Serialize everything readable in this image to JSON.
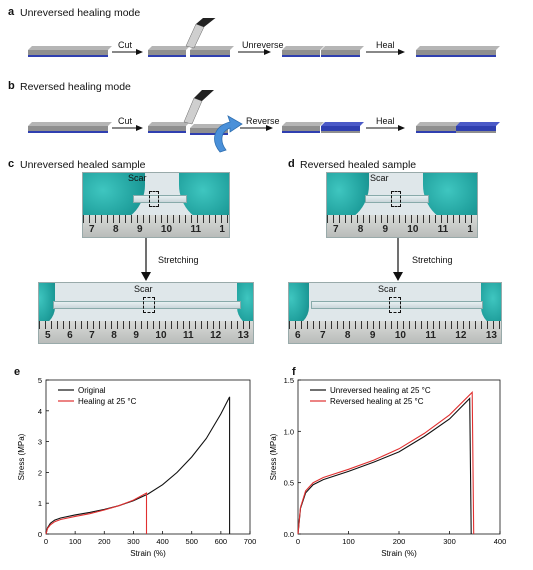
{
  "panel_a": {
    "letter": "a",
    "title": "Unreversed healing mode",
    "step1": "Cut",
    "step2": "Unreverse",
    "step3": "Heal"
  },
  "panel_b": {
    "letter": "b",
    "title": "Reversed healing mode",
    "step1": "Cut",
    "step2": "Reverse",
    "step3": "Heal"
  },
  "panel_c": {
    "letter": "c",
    "title": "Unreversed healed sample",
    "scar_top": "Scar",
    "stretch": "Stretching",
    "scar_bottom": "Scar",
    "ruler_top": [
      "7",
      "8",
      "9",
      "10",
      "11",
      "1"
    ],
    "ruler_bottom": [
      "5",
      "6",
      "7",
      "8",
      "9",
      "10",
      "11",
      "12",
      "13"
    ]
  },
  "panel_d": {
    "letter": "d",
    "title": "Reversed healed sample",
    "scar_top": "Scar",
    "stretch": "Stretching",
    "scar_bottom": "Scar",
    "ruler_top": [
      "7",
      "8",
      "9",
      "10",
      "11",
      "1"
    ],
    "ruler_bottom": [
      "6",
      "7",
      "8",
      "9",
      "10",
      "11",
      "12",
      "13"
    ]
  },
  "colors": {
    "black": "#111111",
    "red": "#e03030",
    "gray_strip": "#8f8f8f",
    "blue_strip": "#2f3fb0"
  },
  "chart_data": [
    {
      "panel": "e",
      "type": "line",
      "xlabel": "Strain (%)",
      "ylabel": "Stress (MPa)",
      "xlim": [
        0,
        700
      ],
      "ylim": [
        0,
        5
      ],
      "xticks": [
        0,
        100,
        200,
        300,
        400,
        500,
        600,
        700
      ],
      "yticks": [
        0,
        1,
        2,
        3,
        4,
        5
      ],
      "legend": "top-left",
      "series": [
        {
          "name": "Original",
          "color": "#111111",
          "x": [
            0,
            5,
            15,
            30,
            50,
            100,
            150,
            200,
            250,
            300,
            350,
            400,
            450,
            500,
            550,
            600,
            630,
            630
          ],
          "y": [
            0,
            0.2,
            0.35,
            0.45,
            0.52,
            0.62,
            0.7,
            0.8,
            0.92,
            1.08,
            1.3,
            1.6,
            2.0,
            2.5,
            3.1,
            3.9,
            4.45,
            0
          ]
        },
        {
          "name": "Healing at 25 °C",
          "color": "#e03030",
          "x": [
            0,
            5,
            15,
            30,
            50,
            100,
            150,
            200,
            250,
            300,
            345,
            345
          ],
          "y": [
            0,
            0.18,
            0.3,
            0.4,
            0.47,
            0.57,
            0.66,
            0.78,
            0.92,
            1.1,
            1.33,
            0
          ]
        }
      ]
    },
    {
      "panel": "f",
      "type": "line",
      "xlabel": "Strain (%)",
      "ylabel": "Stress (MPa)",
      "xlim": [
        0,
        400
      ],
      "ylim": [
        0,
        1.5
      ],
      "xticks": [
        0,
        100,
        200,
        300,
        400
      ],
      "yticks": [
        0.0,
        0.5,
        1.0,
        1.5
      ],
      "legend": "top-left",
      "series": [
        {
          "name": "Unreversed healing at 25 °C",
          "color": "#111111",
          "x": [
            0,
            5,
            15,
            30,
            50,
            100,
            150,
            200,
            250,
            300,
            340,
            343
          ],
          "y": [
            0,
            0.25,
            0.4,
            0.48,
            0.53,
            0.61,
            0.7,
            0.8,
            0.95,
            1.12,
            1.32,
            0
          ]
        },
        {
          "name": "Reversed healing at 25 °C",
          "color": "#e03030",
          "x": [
            0,
            5,
            15,
            30,
            50,
            100,
            150,
            200,
            250,
            300,
            345,
            348
          ],
          "y": [
            0,
            0.26,
            0.42,
            0.5,
            0.55,
            0.63,
            0.72,
            0.83,
            0.98,
            1.16,
            1.38,
            0
          ]
        }
      ]
    }
  ]
}
